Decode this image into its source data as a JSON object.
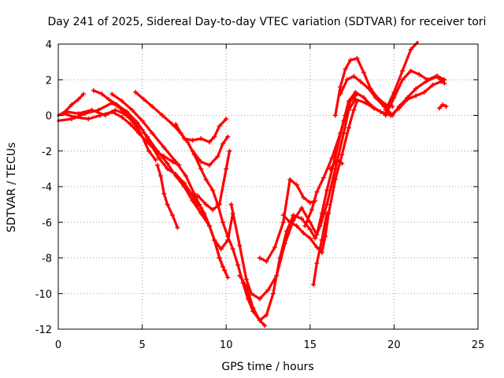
{
  "chart_data": {
    "type": "scatter",
    "title": "Day 241 of 2025, Sidereal Day-to-day VTEC variation (SDTVAR) for receiver tori",
    "xlabel": "GPS time / hours",
    "ylabel": "SDTVAR / TECUs",
    "xlim": [
      0,
      25
    ],
    "ylim": [
      -12,
      4
    ],
    "x_ticks": [
      0,
      5,
      10,
      15,
      20,
      25
    ],
    "y_ticks": [
      -12,
      -10,
      -8,
      -6,
      -4,
      -2,
      0,
      2,
      4
    ],
    "x_tick_labels": [
      "0",
      "5",
      "10",
      "15",
      "20",
      "25"
    ],
    "y_tick_labels": [
      "-12",
      "-10",
      "-8",
      "-6",
      "-4",
      "-2",
      "0",
      "2",
      "4"
    ],
    "grid": true,
    "marker": "+",
    "color": "#ff0000",
    "series": [
      {
        "points": [
          [
            0.0,
            0.0
          ],
          [
            0.4,
            0.2
          ],
          [
            0.8,
            0.6
          ],
          [
            1.2,
            0.9
          ],
          [
            1.5,
            1.2
          ]
        ]
      },
      {
        "points": [
          [
            0.0,
            -0.3
          ],
          [
            0.8,
            -0.2
          ],
          [
            1.6,
            0.1
          ],
          [
            2.4,
            0.3
          ],
          [
            3.2,
            0.7
          ],
          [
            3.7,
            0.4
          ],
          [
            4.1,
            0.0
          ],
          [
            4.5,
            -0.4
          ],
          [
            5.0,
            -0.8
          ],
          [
            5.5,
            -1.6
          ],
          [
            6.0,
            -2.4
          ],
          [
            6.5,
            -3.0
          ],
          [
            7.0,
            -3.3
          ],
          [
            7.5,
            -3.8
          ],
          [
            8.0,
            -4.5
          ],
          [
            8.3,
            -5.1
          ]
        ]
      },
      {
        "points": [
          [
            0.5,
            0.2
          ],
          [
            1.2,
            0.1
          ],
          [
            2.0,
            0.3
          ],
          [
            2.8,
            0.0
          ],
          [
            3.4,
            0.3
          ],
          [
            3.9,
            0.1
          ],
          [
            4.4,
            -0.3
          ],
          [
            4.9,
            -1.0
          ],
          [
            5.4,
            -2.0
          ],
          [
            5.8,
            -2.5
          ]
        ]
      },
      {
        "points": [
          [
            5.9,
            -2.8
          ],
          [
            6.1,
            -3.4
          ],
          [
            6.3,
            -4.4
          ],
          [
            6.5,
            -5.0
          ],
          [
            6.8,
            -5.6
          ],
          [
            7.1,
            -6.3
          ]
        ]
      },
      {
        "points": [
          [
            0.3,
            0.1
          ],
          [
            1.0,
            -0.1
          ],
          [
            1.8,
            -0.2
          ],
          [
            2.5,
            0.0
          ],
          [
            3.2,
            0.2
          ],
          [
            3.8,
            -0.1
          ],
          [
            4.3,
            -0.5
          ],
          [
            4.8,
            -1.0
          ],
          [
            5.3,
            -1.5
          ],
          [
            5.8,
            -2.0
          ],
          [
            6.3,
            -2.3
          ],
          [
            6.8,
            -2.6
          ],
          [
            7.2,
            -2.8
          ]
        ]
      },
      {
        "points": [
          [
            2.1,
            1.4
          ],
          [
            2.6,
            1.2
          ],
          [
            3.0,
            0.9
          ],
          [
            3.5,
            0.6
          ],
          [
            4.1,
            0.2
          ],
          [
            4.7,
            -0.4
          ],
          [
            5.3,
            -1.2
          ],
          [
            5.9,
            -2.0
          ],
          [
            6.5,
            -2.7
          ],
          [
            7.0,
            -3.4
          ],
          [
            7.5,
            -4.0
          ],
          [
            8.0,
            -4.8
          ],
          [
            8.5,
            -5.5
          ],
          [
            9.0,
            -6.2
          ],
          [
            9.3,
            -7.0
          ],
          [
            9.6,
            -8.0
          ],
          [
            9.8,
            -8.5
          ]
        ]
      },
      {
        "points": [
          [
            3.2,
            1.2
          ],
          [
            3.8,
            0.8
          ],
          [
            4.4,
            0.3
          ],
          [
            5.0,
            -0.3
          ],
          [
            5.6,
            -1.0
          ],
          [
            6.3,
            -1.8
          ],
          [
            7.0,
            -2.6
          ],
          [
            7.6,
            -3.4
          ],
          [
            8.1,
            -4.4
          ],
          [
            8.4,
            -5.0
          ],
          [
            8.7,
            -5.5
          ],
          [
            9.0,
            -6.2
          ],
          [
            9.3,
            -7.0
          ],
          [
            9.6,
            -8.0
          ],
          [
            9.9,
            -8.7
          ],
          [
            10.1,
            -9.1
          ]
        ]
      },
      {
        "points": [
          [
            4.6,
            1.3
          ],
          [
            5.1,
            0.9
          ],
          [
            5.6,
            0.5
          ],
          [
            6.2,
            0.0
          ],
          [
            6.8,
            -0.5
          ],
          [
            7.3,
            -1.0
          ],
          [
            7.7,
            -1.5
          ],
          [
            8.1,
            -2.2
          ],
          [
            8.5,
            -3.0
          ],
          [
            8.8,
            -3.6
          ],
          [
            9.2,
            -4.2
          ],
          [
            9.5,
            -5.0
          ],
          [
            9.8,
            -6.0
          ],
          [
            10.1,
            -6.8
          ],
          [
            10.4,
            -7.5
          ],
          [
            10.7,
            -8.4
          ],
          [
            11.0,
            -9.4
          ],
          [
            11.3,
            -10.3
          ],
          [
            11.6,
            -11.0
          ],
          [
            12.0,
            -11.5
          ],
          [
            12.3,
            -11.8
          ]
        ]
      },
      {
        "points": [
          [
            7.0,
            -0.5
          ],
          [
            7.5,
            -1.3
          ],
          [
            8.0,
            -1.4
          ],
          [
            8.5,
            -1.3
          ],
          [
            9.0,
            -1.5
          ],
          [
            9.3,
            -1.2
          ],
          [
            9.6,
            -0.6
          ],
          [
            10.0,
            -0.2
          ]
        ]
      },
      {
        "points": [
          [
            8.0,
            -2.0
          ],
          [
            8.5,
            -2.6
          ],
          [
            9.0,
            -2.8
          ],
          [
            9.5,
            -2.3
          ],
          [
            9.8,
            -1.6
          ],
          [
            10.1,
            -1.2
          ]
        ]
      },
      {
        "points": [
          [
            8.3,
            -4.5
          ],
          [
            8.8,
            -5.0
          ],
          [
            9.2,
            -5.3
          ],
          [
            9.6,
            -5.0
          ],
          [
            10.0,
            -3.0
          ],
          [
            10.2,
            -2.0
          ]
        ]
      },
      {
        "points": [
          [
            8.5,
            -5.2
          ],
          [
            9.0,
            -6.2
          ],
          [
            9.3,
            -7.0
          ],
          [
            9.7,
            -7.5
          ],
          [
            10.1,
            -7.0
          ],
          [
            10.4,
            -5.5
          ]
        ]
      },
      {
        "points": [
          [
            10.3,
            -5.0
          ],
          [
            10.8,
            -7.3
          ],
          [
            11.2,
            -9.2
          ],
          [
            11.5,
            -10.0
          ],
          [
            12.0,
            -10.3
          ],
          [
            12.5,
            -9.8
          ],
          [
            13.0,
            -9.0
          ],
          [
            13.5,
            -7.2
          ],
          [
            14.0,
            -5.9
          ],
          [
            14.5,
            -5.2
          ],
          [
            15.0,
            -6.0
          ],
          [
            15.4,
            -6.7
          ],
          [
            15.7,
            -5.5
          ],
          [
            16.0,
            -4.2
          ],
          [
            16.5,
            -2.3
          ],
          [
            17.0,
            -0.3
          ],
          [
            17.3,
            0.8
          ],
          [
            17.7,
            1.3
          ],
          [
            18.2,
            1.0
          ],
          [
            18.7,
            0.5
          ],
          [
            19.2,
            0.2
          ],
          [
            19.8,
            0.0
          ],
          [
            20.3,
            0.4
          ],
          [
            20.8,
            0.9
          ],
          [
            21.3,
            1.1
          ],
          [
            21.8,
            1.3
          ],
          [
            22.3,
            1.7
          ],
          [
            22.8,
            1.9
          ]
        ]
      },
      {
        "points": [
          [
            10.8,
            -9.0
          ],
          [
            11.2,
            -9.6
          ],
          [
            11.6,
            -10.8
          ],
          [
            12.0,
            -11.5
          ],
          [
            12.4,
            -11.2
          ],
          [
            12.8,
            -10.0
          ],
          [
            13.2,
            -8.0
          ],
          [
            13.6,
            -6.5
          ],
          [
            14.0,
            -5.6
          ],
          [
            14.5,
            -5.8
          ],
          [
            15.0,
            -6.4
          ],
          [
            15.3,
            -6.9
          ],
          [
            15.6,
            -6.2
          ],
          [
            16.0,
            -5.0
          ],
          [
            16.5,
            -3.0
          ],
          [
            17.0,
            -1.0
          ],
          [
            17.3,
            0.3
          ],
          [
            17.7,
            0.9
          ],
          [
            18.3,
            0.7
          ],
          [
            18.8,
            0.4
          ],
          [
            19.4,
            0.1
          ],
          [
            19.9,
            0.0
          ],
          [
            20.3,
            0.5
          ],
          [
            20.8,
            1.0
          ],
          [
            21.3,
            1.5
          ],
          [
            21.9,
            1.9
          ],
          [
            22.6,
            2.2
          ],
          [
            23.0,
            2.0
          ]
        ]
      },
      {
        "points": [
          [
            12.0,
            -8.0
          ],
          [
            12.4,
            -8.2
          ],
          [
            12.9,
            -7.4
          ],
          [
            13.4,
            -6.0
          ],
          [
            13.8,
            -3.6
          ],
          [
            14.2,
            -3.9
          ],
          [
            14.6,
            -4.6
          ],
          [
            15.0,
            -4.9
          ],
          [
            15.3,
            -4.8
          ]
        ]
      },
      {
        "points": [
          [
            13.4,
            -5.6
          ],
          [
            13.8,
            -6.0
          ],
          [
            14.2,
            -6.2
          ],
          [
            14.6,
            -6.6
          ],
          [
            15.0,
            -6.9
          ],
          [
            15.4,
            -7.4
          ],
          [
            15.7,
            -7.7
          ],
          [
            15.9,
            -6.8
          ],
          [
            16.1,
            -5.5
          ],
          [
            16.5,
            -3.6
          ],
          [
            16.9,
            -2.2
          ],
          [
            17.3,
            -0.7
          ],
          [
            17.6,
            0.3
          ],
          [
            17.8,
            0.8
          ]
        ]
      },
      {
        "points": [
          [
            14.7,
            -6.2
          ],
          [
            15.1,
            -5.3
          ],
          [
            15.4,
            -4.3
          ],
          [
            15.8,
            -3.5
          ],
          [
            16.3,
            -2.4
          ],
          [
            16.8,
            -1.0
          ],
          [
            17.1,
            0.0
          ],
          [
            17.4,
            0.8
          ],
          [
            17.8,
            1.2
          ]
        ]
      },
      {
        "points": [
          [
            15.2,
            -9.5
          ],
          [
            15.4,
            -8.3
          ],
          [
            15.7,
            -7.0
          ],
          [
            16.0,
            -5.5
          ]
        ]
      },
      {
        "points": [
          [
            16.5,
            0.0
          ],
          [
            16.8,
            1.6
          ],
          [
            17.1,
            2.6
          ],
          [
            17.4,
            3.1
          ],
          [
            17.8,
            3.2
          ],
          [
            18.2,
            2.4
          ],
          [
            18.6,
            1.5
          ],
          [
            19.0,
            1.0
          ],
          [
            19.5,
            0.6
          ],
          [
            19.9,
            0.5
          ]
        ]
      },
      {
        "points": [
          [
            16.8,
            1.2
          ],
          [
            17.2,
            2.0
          ],
          [
            17.6,
            2.2
          ],
          [
            18.0,
            1.9
          ],
          [
            18.5,
            1.5
          ],
          [
            18.9,
            1.0
          ],
          [
            19.4,
            0.5
          ],
          [
            19.8,
            0.1
          ]
        ]
      },
      {
        "points": [
          [
            16.2,
            -3.0
          ],
          [
            16.6,
            -2.5
          ],
          [
            16.9,
            -2.7
          ]
        ]
      },
      {
        "points": [
          [
            19.5,
            0.0
          ],
          [
            20.0,
            1.0
          ],
          [
            20.5,
            2.0
          ],
          [
            21.0,
            2.5
          ],
          [
            21.5,
            2.3
          ],
          [
            22.0,
            2.0
          ],
          [
            22.5,
            2.2
          ],
          [
            23.0,
            1.8
          ]
        ]
      },
      {
        "points": [
          [
            19.5,
            0.3
          ],
          [
            20.0,
            1.3
          ],
          [
            20.5,
            2.5
          ],
          [
            21.0,
            3.7
          ],
          [
            21.4,
            4.1
          ]
        ]
      },
      {
        "points": [
          [
            22.7,
            0.4
          ],
          [
            22.9,
            0.6
          ],
          [
            23.1,
            0.5
          ]
        ]
      }
    ]
  }
}
